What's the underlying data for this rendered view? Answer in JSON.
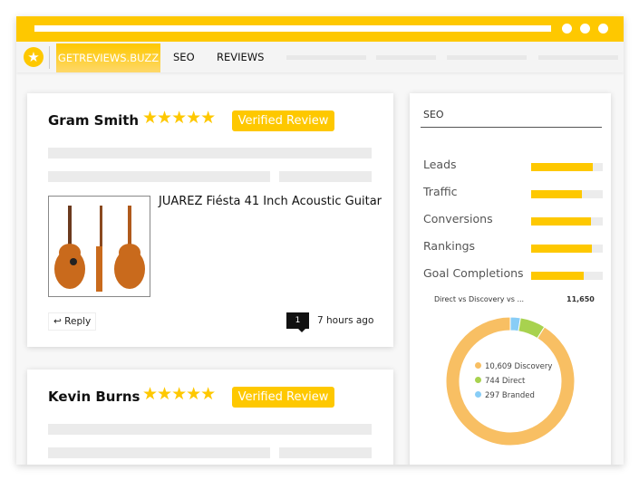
{
  "nav": {
    "brand": "GETREVIEWS.BUZZ",
    "items": [
      "SEO",
      "REVIEWS"
    ],
    "logo_icon": "star-icon"
  },
  "colors": {
    "accent": "#fec800",
    "discovery": "#f8bf63",
    "direct": "#a8d24f",
    "branded": "#88cdf6"
  },
  "reviews": [
    {
      "name": "Gram Smith",
      "rating": 5,
      "stars": "★★★★★",
      "badge": "Verified Review",
      "product": "JUAREZ Fiésta 41 Inch Acoustic Guitar",
      "reply": "Reply",
      "comments": "1",
      "time": "7 hours ago"
    },
    {
      "name": "Kevin Burns",
      "rating": 5,
      "stars": "★★★★★",
      "badge": "Verified Review"
    }
  ],
  "seo": {
    "title": "SEO",
    "metrics": [
      {
        "label": "Leads",
        "value": 0.86
      },
      {
        "label": "Traffic",
        "value": 0.71
      },
      {
        "label": "Conversions",
        "value": 0.84
      },
      {
        "label": "Rankings",
        "value": 0.85
      },
      {
        "label": "Goal Completions",
        "value": 0.74
      }
    ]
  },
  "chart_data": {
    "type": "pie",
    "title": "Direct vs Discovery vs ...",
    "total": "11,650",
    "slices": [
      {
        "name": "Branded",
        "value": 297,
        "label": "297 Branded",
        "color": "#88cdf6"
      },
      {
        "name": "Direct",
        "value": 744,
        "label": "744 Direct",
        "color": "#a8d24f"
      },
      {
        "name": "Discovery",
        "value": 10609,
        "label": "10,609 Discovery",
        "color": "#f8bf63"
      }
    ]
  }
}
